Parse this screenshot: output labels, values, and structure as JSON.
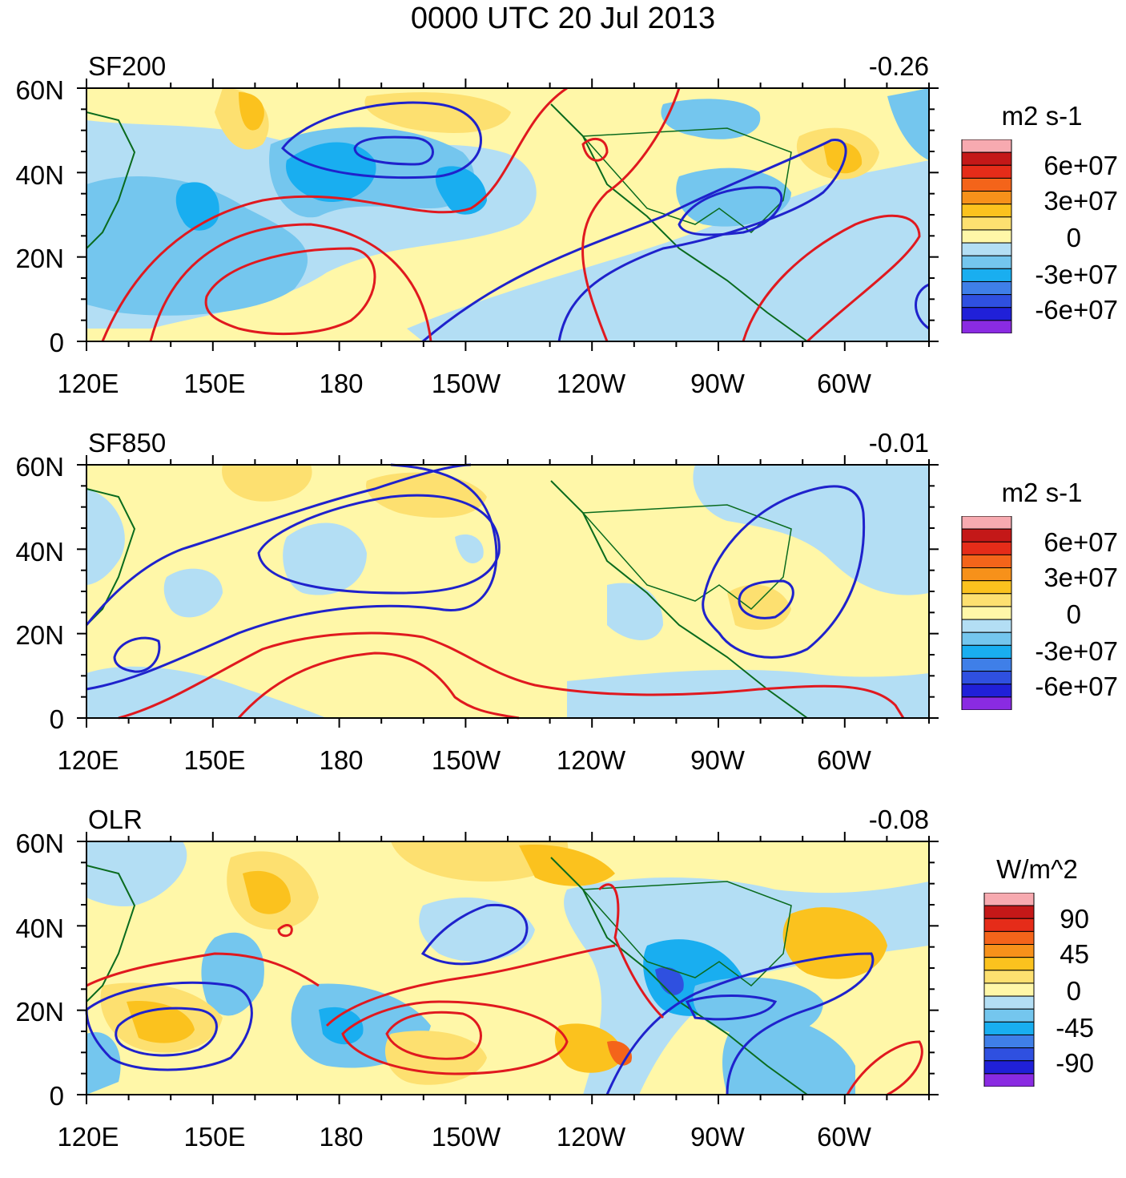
{
  "title": "0000 UTC 20 Jul 2013",
  "lon_labels": [
    "120E",
    "150E",
    "180",
    "150W",
    "120W",
    "90W",
    "60W"
  ],
  "lat_labels": [
    "60N",
    "40N",
    "20N",
    "0"
  ],
  "panels": [
    {
      "id": "sf200",
      "name": "SF200",
      "stat": "-0.26",
      "units": "m2 s-1",
      "colorbar_labels": [
        "6e+07",
        "3e+07",
        "0",
        "-3e+07",
        "-6e+07"
      ]
    },
    {
      "id": "sf850",
      "name": "SF850",
      "stat": "-0.01",
      "units": "m2 s-1",
      "colorbar_labels": [
        "6e+07",
        "3e+07",
        "0",
        "-3e+07",
        "-6e+07"
      ]
    },
    {
      "id": "olr",
      "name": "OLR",
      "stat": "-0.08",
      "units": "W/m^2",
      "colorbar_labels": [
        "90",
        "45",
        "0",
        "-45",
        "-90"
      ]
    }
  ],
  "colors": {
    "palette": [
      "#8a2be2",
      "#2020d8",
      "#2f50e0",
      "#3f7fe8",
      "#19aef0",
      "#74c6ee",
      "#b3def4",
      "#fff7a8",
      "#fde070",
      "#fbc21e",
      "#f7911a",
      "#f4641a",
      "#e52c19",
      "#c41818",
      "#f7aab0"
    ],
    "positive_contour": "#e0191f",
    "negative_contour": "#1f22cc",
    "coast": "#0a6b1e"
  },
  "chart_data": [
    {
      "type": "heatmap",
      "title": "SF200",
      "stat": "-0.26",
      "units": "m2 s-1",
      "xlim": [
        120,
        320
      ],
      "ylim": [
        0,
        60
      ],
      "xticks": [
        "120E",
        "150E",
        "180",
        "150W",
        "120W",
        "90W",
        "60W"
      ],
      "yticks": [
        "0",
        "20N",
        "40N",
        "60N"
      ],
      "levels": [
        -60000000.0,
        -30000000.0,
        0,
        30000000.0,
        60000000.0
      ],
      "contour_lines": "positive red, negative blue"
    },
    {
      "type": "heatmap",
      "title": "SF850",
      "stat": "-0.01",
      "units": "m2 s-1",
      "xlim": [
        120,
        320
      ],
      "ylim": [
        0,
        60
      ],
      "xticks": [
        "120E",
        "150E",
        "180",
        "150W",
        "120W",
        "90W",
        "60W"
      ],
      "yticks": [
        "0",
        "20N",
        "40N",
        "60N"
      ],
      "levels": [
        -60000000.0,
        -30000000.0,
        0,
        30000000.0,
        60000000.0
      ],
      "contour_lines": "positive red, negative blue"
    },
    {
      "type": "heatmap",
      "title": "OLR",
      "stat": "-0.08",
      "units": "W/m^2",
      "xlim": [
        120,
        320
      ],
      "ylim": [
        0,
        60
      ],
      "xticks": [
        "120E",
        "150E",
        "180",
        "150W",
        "120W",
        "90W",
        "60W"
      ],
      "yticks": [
        "0",
        "20N",
        "40N",
        "60N"
      ],
      "levels": [
        -90,
        -45,
        0,
        45,
        90
      ],
      "contour_lines": "positive red, negative blue"
    }
  ]
}
